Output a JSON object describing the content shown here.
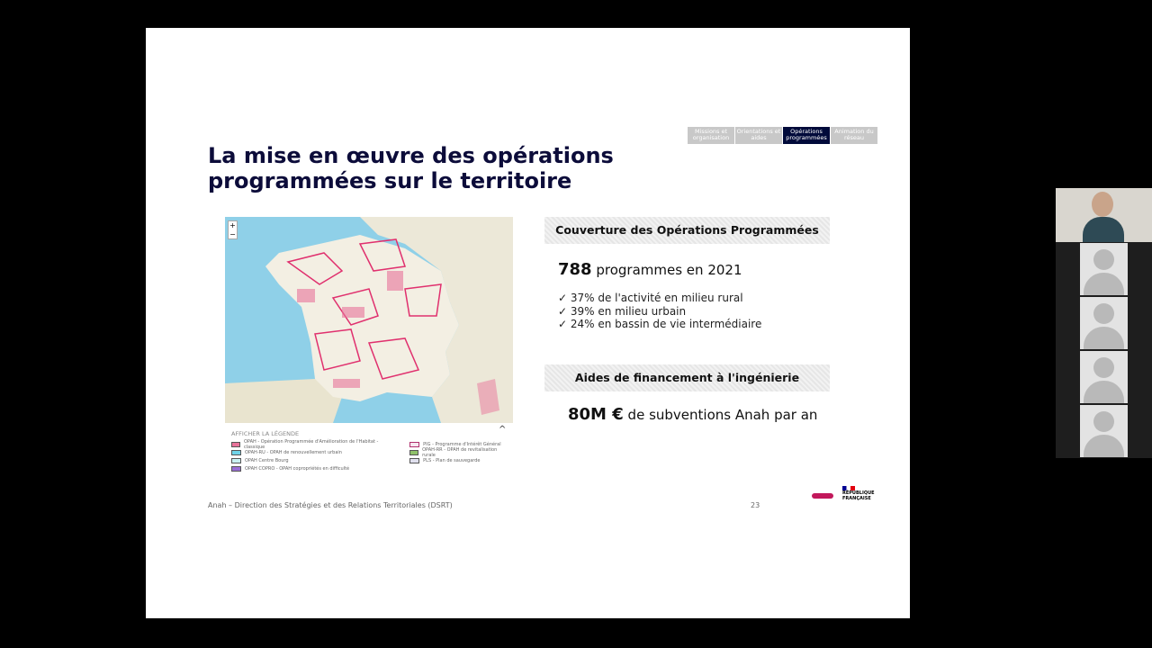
{
  "nav_tabs": [
    {
      "label": "Missions et organisation",
      "active": false
    },
    {
      "label": "Orientations et aides",
      "active": false
    },
    {
      "label": "Opérations programmées",
      "active": true
    },
    {
      "label": "Animation du réseau",
      "active": false
    }
  ],
  "title": "La mise en œuvre des opérations programmées sur le territoire",
  "map": {
    "zoom_in": "+",
    "zoom_out": "−",
    "legend_toggle": "AFFICHER LA LÉGENDE",
    "legend": [
      {
        "label": "OPAH - Opération Programmée d'Amélioration de l'Habitat - classique",
        "color": "#e8739a"
      },
      {
        "label": "OPAH-RU - OPAH de renouvellement urbain",
        "color": "#6fd3e8"
      },
      {
        "label": "OPAH Centre Bourg",
        "color": "#c9f1f2"
      },
      {
        "label": "OPAH COPRO - OPAH copropriétés en difficulté",
        "color": "#9a6fd6"
      },
      {
        "label": "PIG - Programme d'Intérêt Général",
        "color": "#f7e6f0"
      },
      {
        "label": "OPAH-RR - OPAH de revitalisation rurale",
        "color": "#8fc16a"
      },
      {
        "label": "PLS - Plan de sauvegarde",
        "color": "#e0e0ee"
      }
    ]
  },
  "coverage": {
    "header": "Couverture des Opérations Programmées",
    "count": "788",
    "count_text": "programmes en 2021",
    "items": [
      "37% de l'activité en milieu rural",
      "39% en milieu urbain",
      "24% en bassin de vie intermédiaire"
    ]
  },
  "funding": {
    "header": "Aides de financement à l'ingénierie",
    "amount": "80M €",
    "amount_text": "de subventions Anah par an"
  },
  "footer": {
    "text": "Anah – Direction des Stratégies et des Relations Territoriales (DSRT)",
    "page": "23"
  },
  "logos": {
    "anah": "Agence nationale de l'habitat",
    "republique": "RÉPUBLIQUE FRANÇAISE"
  }
}
